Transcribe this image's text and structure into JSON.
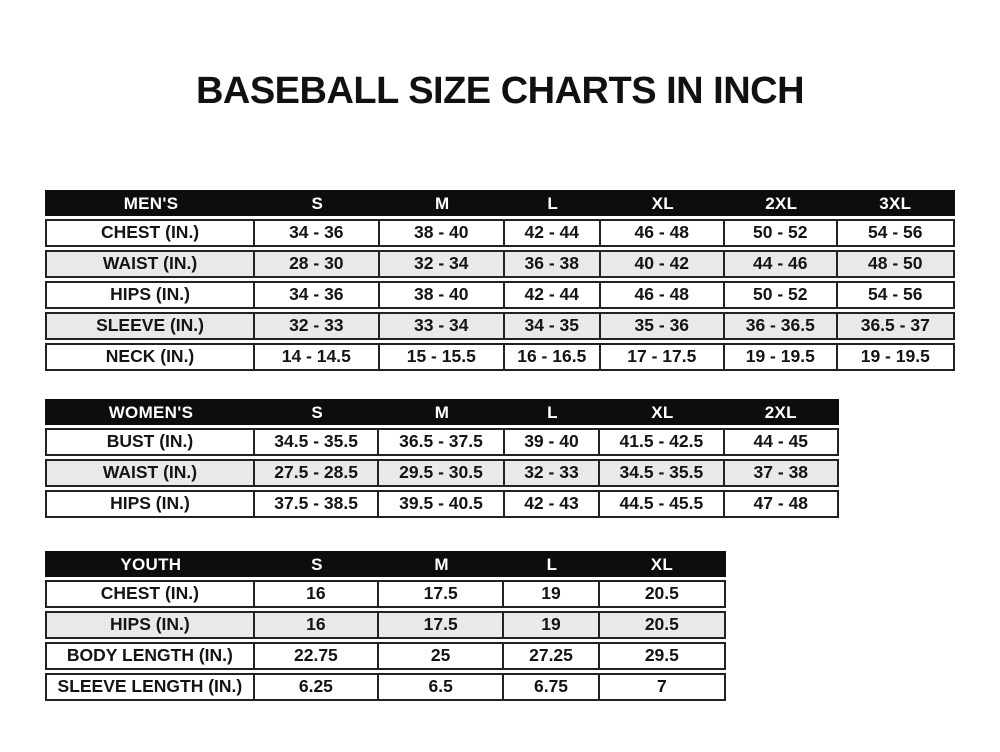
{
  "page": {
    "title": "BASEBALL SIZE CHARTS IN INCH"
  },
  "colors": {
    "background": "#ffffff",
    "header_bg": "#0d0d0d",
    "header_text": "#ffffff",
    "row_alt_bg": "#e9e9e9",
    "border": "#222222",
    "text": "#141414"
  },
  "chart_data": [
    {
      "type": "table",
      "name": "mens-size-chart",
      "columns": [
        "MEN'S",
        "S",
        "M",
        "L",
        "XL",
        "2XL",
        "3XL"
      ],
      "rows": [
        {
          "label": "CHEST (IN.)",
          "values": [
            "34 - 36",
            "38 - 40",
            "42 - 44",
            "46 - 48",
            "50 - 52",
            "54 - 56"
          ]
        },
        {
          "label": "WAIST (IN.)",
          "values": [
            "28 - 30",
            "32 - 34",
            "36 - 38",
            "40 - 42",
            "44 - 46",
            "48 - 50"
          ]
        },
        {
          "label": "HIPS (IN.)",
          "values": [
            "34 - 36",
            "38 - 40",
            "42 - 44",
            "46 - 48",
            "50 - 52",
            "54 - 56"
          ]
        },
        {
          "label": "SLEEVE (IN.)",
          "values": [
            "32 - 33",
            "33 - 34",
            "34 - 35",
            "35 - 36",
            "36 - 36.5",
            "36.5 - 37"
          ]
        },
        {
          "label": "NECK (IN.)",
          "values": [
            "14 - 14.5",
            "15 - 15.5",
            "16 - 16.5",
            "17 - 17.5",
            "19 - 19.5",
            "19 - 19.5"
          ]
        }
      ]
    },
    {
      "type": "table",
      "name": "womens-size-chart",
      "columns": [
        "WOMEN'S",
        "S",
        "M",
        "L",
        "XL",
        "2XL"
      ],
      "rows": [
        {
          "label": "BUST (IN.)",
          "values": [
            "34.5 - 35.5",
            "36.5 - 37.5",
            "39 - 40",
            "41.5 - 42.5",
            "44 - 45"
          ]
        },
        {
          "label": "WAIST (IN.)",
          "values": [
            "27.5 - 28.5",
            "29.5 - 30.5",
            "32 - 33",
            "34.5 - 35.5",
            "37 - 38"
          ]
        },
        {
          "label": "HIPS (IN.)",
          "values": [
            "37.5 - 38.5",
            "39.5 - 40.5",
            "42 - 43",
            "44.5 - 45.5",
            "47 - 48"
          ]
        }
      ]
    },
    {
      "type": "table",
      "name": "youth-size-chart",
      "columns": [
        "YOUTH",
        "S",
        "M",
        "L",
        "XL"
      ],
      "rows": [
        {
          "label": "CHEST (IN.)",
          "values": [
            "16",
            "17.5",
            "19",
            "20.5"
          ]
        },
        {
          "label": "HIPS (IN.)",
          "values": [
            "16",
            "17.5",
            "19",
            "20.5"
          ]
        },
        {
          "label": "BODY LENGTH (IN.)",
          "values": [
            "22.75",
            "25",
            "27.25",
            "29.5"
          ]
        },
        {
          "label": "SLEEVE LENGTH (IN.)",
          "values": [
            "6.25",
            "6.5",
            "6.75",
            "7"
          ]
        }
      ]
    }
  ]
}
